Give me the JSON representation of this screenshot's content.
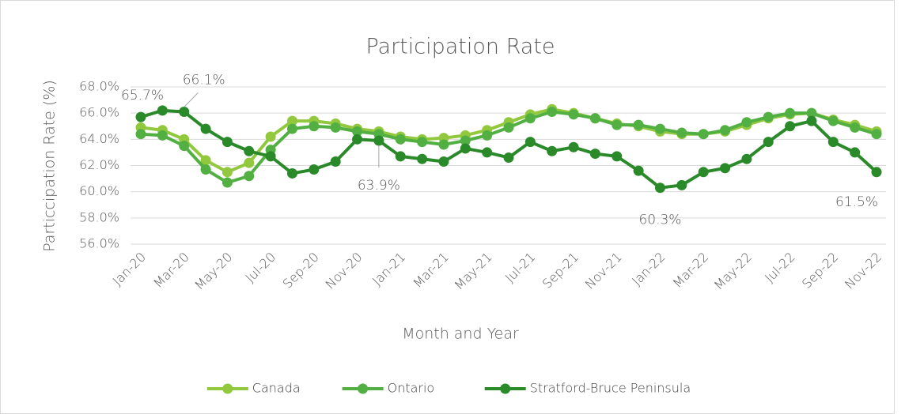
{
  "chart_data": {
    "type": "line",
    "title": "Participation Rate",
    "x_label": "Month and Year",
    "y_label": "Particcipation Rate (%)",
    "categories": [
      "Jan-20",
      null,
      "Mar-20",
      null,
      "May-20",
      null,
      "Jul-20",
      null,
      "Sep-20",
      null,
      "Nov-20",
      null,
      "Jan-21",
      null,
      "Mar-21",
      null,
      "May-21",
      null,
      "Jul-21",
      null,
      "Sep-21",
      null,
      "Nov-21",
      null,
      "Jan-22",
      null,
      "Mar-22",
      null,
      "May-22",
      null,
      "Jul-22",
      null,
      "Sep-22",
      null,
      "Nov-22"
    ],
    "series": [
      {
        "name": "Canada",
        "color": "#92c83e",
        "values": [
          64.9,
          64.7,
          64.0,
          62.4,
          61.5,
          62.2,
          64.2,
          65.4,
          65.4,
          65.2,
          64.8,
          64.6,
          64.2,
          64.0,
          64.1,
          64.3,
          64.7,
          65.3,
          65.9,
          66.3,
          66.0,
          65.6,
          65.2,
          65.0,
          64.6,
          64.4,
          64.4,
          64.6,
          65.1,
          65.6,
          65.9,
          66.0,
          65.5,
          65.1,
          64.6
        ]
      },
      {
        "name": "Ontario",
        "color": "#52b043",
        "values": [
          64.4,
          64.3,
          63.5,
          61.7,
          60.7,
          61.2,
          63.2,
          64.8,
          65.0,
          64.9,
          64.6,
          64.4,
          64.0,
          63.8,
          63.6,
          63.9,
          64.3,
          64.9,
          65.6,
          66.1,
          65.9,
          65.6,
          65.1,
          65.1,
          64.8,
          64.5,
          64.4,
          64.7,
          65.3,
          65.7,
          66.0,
          66.0,
          65.4,
          64.9,
          64.4
        ]
      },
      {
        "name": "Stratford-Bruce Peninsula",
        "color": "#2a8a2a",
        "values": [
          65.7,
          66.2,
          66.1,
          64.8,
          63.8,
          63.1,
          62.7,
          61.4,
          61.7,
          62.3,
          64.0,
          63.9,
          62.7,
          62.5,
          62.3,
          63.3,
          63.0,
          62.6,
          63.8,
          63.1,
          63.4,
          62.9,
          62.7,
          61.6,
          60.3,
          60.5,
          61.5,
          61.8,
          62.5,
          63.8,
          65.0,
          65.4,
          63.8,
          63.0,
          61.5
        ],
        "value_labels": [
          "65.7%",
          null,
          "66.1%",
          null,
          null,
          null,
          null,
          null,
          null,
          null,
          null,
          "63.9%",
          null,
          null,
          null,
          null,
          null,
          null,
          null,
          null,
          null,
          null,
          null,
          null,
          "60.3%",
          null,
          null,
          null,
          null,
          null,
          null,
          null,
          null,
          null,
          "61.5%"
        ]
      }
    ],
    "ylim": [
      56,
      68
    ],
    "yticks": [
      {
        "value": 56,
        "label": "56.0%"
      },
      {
        "value": 58,
        "label": "58.0%"
      },
      {
        "value": 60,
        "label": "60.0%"
      },
      {
        "value": 62,
        "label": "62.0%"
      },
      {
        "value": 64,
        "label": "64.0%"
      },
      {
        "value": 66,
        "label": "66.0%"
      },
      {
        "value": 68,
        "label": "68.0%"
      }
    ],
    "grid": true,
    "legend": "bottom"
  }
}
